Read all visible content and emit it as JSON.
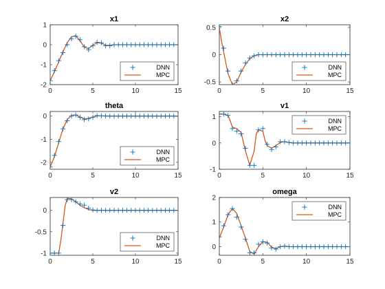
{
  "chart_data": [
    {
      "type": "line",
      "title": "x1",
      "xlim": [
        0,
        15
      ],
      "ylim": [
        -2,
        1
      ],
      "xticks": [
        0,
        5,
        10,
        15
      ],
      "yticks": [
        -2,
        -1,
        0,
        1
      ],
      "legend": "bottom-right",
      "series": [
        {
          "name": "DNN",
          "style": "marker-plus",
          "color": "#0072BD",
          "x": [
            0,
            0.5,
            1,
            1.5,
            2,
            2.5,
            3,
            3.5,
            4,
            4.5,
            5,
            5.5,
            6,
            6.5,
            7,
            7.5,
            8,
            8.5,
            9,
            9.5,
            10,
            10.5,
            11,
            11.5,
            12,
            12.5,
            13,
            13.5,
            14,
            14.5,
            15
          ],
          "y": [
            -1.8,
            -1.3,
            -0.8,
            -0.4,
            0.0,
            0.3,
            0.42,
            0.25,
            -0.1,
            -0.25,
            -0.05,
            0.12,
            0.1,
            -0.05,
            -0.05,
            0,
            0,
            0,
            0,
            0,
            0,
            0,
            0,
            0,
            0,
            0,
            0,
            0,
            0,
            0,
            0
          ]
        },
        {
          "name": "MPC",
          "style": "line",
          "color": "#D95319",
          "x": [
            0,
            0.5,
            1,
            1.5,
            2,
            2.5,
            3,
            3.5,
            4,
            4.5,
            5,
            5.5,
            6,
            6.5,
            7,
            7.5,
            8,
            9,
            10,
            11,
            12,
            13,
            14,
            15
          ],
          "y": [
            -1.8,
            -1.35,
            -0.85,
            -0.35,
            0.1,
            0.4,
            0.45,
            0.2,
            -0.12,
            -0.2,
            -0.02,
            0.1,
            0.08,
            -0.02,
            -0.03,
            0,
            0,
            0,
            0,
            0,
            0,
            0,
            0,
            0
          ]
        }
      ]
    },
    {
      "type": "line",
      "title": "x2",
      "xlim": [
        0,
        15
      ],
      "ylim": [
        -0.55,
        0.55
      ],
      "xticks": [
        0,
        5,
        10,
        15
      ],
      "yticks": [
        -0.5,
        0,
        0.5
      ],
      "legend": "bottom-right",
      "series": [
        {
          "name": "DNN",
          "style": "marker-plus",
          "color": "#0072BD",
          "x": [
            0,
            0.5,
            1,
            1.5,
            2,
            2.5,
            3,
            3.5,
            4,
            4.5,
            5,
            5.5,
            6,
            6.5,
            7,
            7.5,
            8,
            8.5,
            9,
            9.5,
            10,
            10.5,
            11,
            11.5,
            12,
            12.5,
            13,
            13.5,
            14,
            14.5,
            15
          ],
          "y": [
            0.52,
            0.12,
            -0.3,
            -0.55,
            -0.48,
            -0.3,
            -0.15,
            -0.06,
            -0.02,
            0,
            0,
            0,
            0,
            0,
            0,
            0,
            0,
            0,
            0,
            0,
            0,
            0,
            0,
            0,
            0,
            0,
            0,
            0,
            0,
            0,
            0
          ]
        },
        {
          "name": "MPC",
          "style": "line",
          "color": "#D95319",
          "x": [
            0,
            0.25,
            0.5,
            1,
            1.5,
            2,
            2.5,
            3,
            3.5,
            4,
            4.5,
            5,
            6,
            7,
            8,
            9,
            10,
            11,
            12,
            13,
            14,
            15
          ],
          "y": [
            0.5,
            0.25,
            0.05,
            -0.35,
            -0.55,
            -0.5,
            -0.32,
            -0.18,
            -0.07,
            -0.02,
            0,
            0,
            0,
            0,
            0,
            0,
            0,
            0,
            0,
            0,
            0,
            0
          ]
        }
      ]
    },
    {
      "type": "line",
      "title": "theta",
      "xlim": [
        0,
        15
      ],
      "ylim": [
        -2.3,
        0.2
      ],
      "xticks": [
        0,
        5,
        10,
        15
      ],
      "yticks": [
        -2,
        -1,
        0
      ],
      "legend": "bottom-right",
      "series": [
        {
          "name": "DNN",
          "style": "marker-plus",
          "color": "#0072BD",
          "x": [
            0,
            0.5,
            1,
            1.5,
            2,
            2.5,
            3,
            3.5,
            4,
            4.5,
            5,
            5.5,
            6,
            6.5,
            7,
            7.5,
            8,
            8.5,
            9,
            9.5,
            10,
            10.5,
            11,
            11.5,
            12,
            12.5,
            13,
            13.5,
            14,
            14.5,
            15
          ],
          "y": [
            -2.2,
            -1.7,
            -1.1,
            -0.55,
            -0.2,
            0.0,
            0.05,
            -0.05,
            -0.15,
            -0.12,
            -0.05,
            0.02,
            0.01,
            0,
            0,
            0,
            0,
            0,
            0,
            0,
            0,
            0,
            0,
            0,
            0,
            0,
            0,
            0,
            0,
            0,
            0
          ]
        },
        {
          "name": "MPC",
          "style": "line",
          "color": "#D95319",
          "x": [
            0,
            0.5,
            1,
            1.5,
            2,
            2.5,
            3,
            3.5,
            4,
            4.5,
            5,
            5.5,
            6,
            7,
            8,
            9,
            10,
            11,
            12,
            13,
            14,
            15
          ],
          "y": [
            -2.2,
            -1.75,
            -1.15,
            -0.55,
            -0.15,
            0.03,
            0.05,
            -0.04,
            -0.12,
            -0.1,
            -0.04,
            0.01,
            0.01,
            0,
            0,
            0,
            0,
            0,
            0,
            0,
            0,
            0
          ]
        }
      ]
    },
    {
      "type": "line",
      "title": "v1",
      "xlim": [
        0,
        15
      ],
      "ylim": [
        -1,
        1.2
      ],
      "xticks": [
        0,
        5,
        10,
        15
      ],
      "yticks": [
        -1,
        0,
        1
      ],
      "legend": "top-right",
      "series": [
        {
          "name": "DNN",
          "style": "marker-plus",
          "color": "#0072BD",
          "x": [
            0,
            0.5,
            1,
            1.5,
            2,
            2.5,
            3,
            3.5,
            4,
            4.5,
            5,
            5.5,
            6,
            6.5,
            7,
            7.5,
            8,
            8.5,
            9,
            9.5,
            10,
            10.5,
            11,
            11.5,
            12,
            12.5,
            13,
            13.5,
            14,
            14.5,
            15
          ],
          "y": [
            1.1,
            1.1,
            1.05,
            0.55,
            0.45,
            0.35,
            -0.2,
            -0.85,
            -0.85,
            0.5,
            0.55,
            -0.05,
            -0.25,
            -0.15,
            0.05,
            0.05,
            0.02,
            0,
            0,
            0,
            0,
            0,
            0,
            0,
            0,
            0,
            0,
            0,
            0,
            0,
            0
          ]
        },
        {
          "name": "MPC",
          "style": "line",
          "color": "#D95319",
          "x": [
            0,
            0.5,
            1,
            1.25,
            1.5,
            2,
            2.5,
            3,
            3.5,
            4,
            4.25,
            4.5,
            5,
            5.25,
            5.5,
            6,
            6.5,
            7,
            7.5,
            8,
            8.5,
            9,
            10,
            11,
            12,
            13,
            14,
            15
          ],
          "y": [
            1.1,
            1.1,
            1.05,
            0.85,
            0.6,
            0.55,
            0.4,
            -0.3,
            -0.85,
            -0.3,
            0.35,
            0.5,
            0.45,
            0.1,
            -0.1,
            -0.2,
            -0.1,
            0.02,
            0.05,
            0.02,
            0,
            0,
            0,
            0,
            0,
            0,
            0,
            0
          ]
        }
      ]
    },
    {
      "type": "line",
      "title": "v2",
      "xlim": [
        0,
        15
      ],
      "ylim": [
        -1.05,
        0.3
      ],
      "xticks": [
        0,
        5,
        10,
        15
      ],
      "yticks": [
        -1,
        -0.5,
        0
      ],
      "legend": "bottom-right",
      "series": [
        {
          "name": "DNN",
          "style": "marker-plus",
          "color": "#0072BD",
          "x": [
            0,
            0.5,
            1,
            1.5,
            2,
            2.5,
            3,
            3.5,
            4,
            4.5,
            5,
            5.5,
            6,
            6.5,
            7,
            7.5,
            8,
            8.5,
            9,
            9.5,
            10,
            10.5,
            11,
            11.5,
            12,
            12.5,
            13,
            13.5,
            14,
            14.5,
            15
          ],
          "y": [
            -1,
            -1,
            -1,
            -0.35,
            0.25,
            0.25,
            0.2,
            0.15,
            0.12,
            0.05,
            0.01,
            0,
            0,
            0,
            0,
            0,
            0,
            0,
            0,
            0,
            0,
            0,
            0,
            0,
            0,
            0,
            0,
            0,
            0,
            0,
            0
          ]
        },
        {
          "name": "MPC",
          "style": "line",
          "color": "#D95319",
          "x": [
            0,
            0.5,
            1,
            1.25,
            1.5,
            1.75,
            2,
            2.5,
            3,
            3.5,
            4,
            4.5,
            5,
            6,
            7,
            8,
            9,
            10,
            11,
            12,
            13,
            14,
            15
          ],
          "y": [
            -1,
            -1,
            -1,
            -0.7,
            -0.3,
            0.1,
            0.28,
            0.27,
            0.2,
            0.12,
            0.06,
            0.02,
            0,
            0,
            0,
            0,
            0,
            0,
            0,
            0,
            0,
            0,
            0
          ]
        }
      ]
    },
    {
      "type": "line",
      "title": "omega",
      "xlim": [
        0,
        15
      ],
      "ylim": [
        -0.35,
        2
      ],
      "xticks": [
        0,
        5,
        10,
        15
      ],
      "yticks": [
        0,
        1,
        2
      ],
      "legend": "top-right",
      "series": [
        {
          "name": "DNN",
          "style": "marker-plus",
          "color": "#0072BD",
          "x": [
            0,
            0.5,
            1,
            1.5,
            2,
            2.5,
            3,
            3.5,
            4,
            4.5,
            5,
            5.5,
            6,
            6.5,
            7,
            7.5,
            8,
            8.5,
            9,
            9.5,
            10,
            10.5,
            11,
            11.5,
            12,
            12.5,
            13,
            13.5,
            14,
            14.5,
            15
          ],
          "y": [
            0.4,
            0.85,
            1.3,
            1.55,
            1.2,
            0.8,
            0.3,
            -0.25,
            -0.25,
            0.1,
            0.2,
            0.15,
            -0.05,
            -0.1,
            0,
            0.02,
            0,
            0,
            0,
            0,
            0,
            0,
            0,
            0,
            0,
            0,
            0,
            0,
            0,
            0,
            0
          ]
        },
        {
          "name": "MPC",
          "style": "line",
          "color": "#D95319",
          "x": [
            0,
            0.5,
            1,
            1.5,
            2,
            2.5,
            3,
            3.5,
            4,
            4.5,
            5,
            5.5,
            6,
            6.5,
            7,
            7.5,
            8,
            9,
            10,
            11,
            12,
            13,
            14,
            15
          ],
          "y": [
            0.35,
            0.8,
            1.3,
            1.55,
            1.35,
            0.85,
            0.35,
            -0.2,
            -0.3,
            0.0,
            0.2,
            0.18,
            -0.02,
            -0.08,
            0,
            0.02,
            0,
            0,
            0,
            0,
            0,
            0,
            0,
            0
          ]
        }
      ]
    }
  ]
}
